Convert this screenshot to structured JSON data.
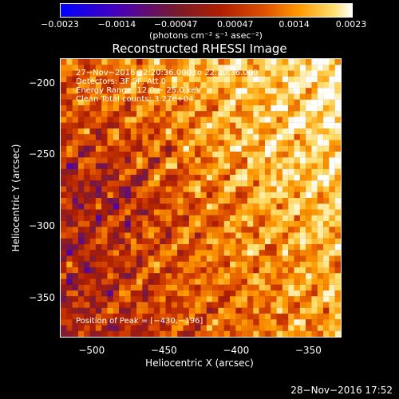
{
  "colorbar": {
    "ticks": [
      "−0.0023",
      "−0.0014",
      "−0.00047",
      "0.00047",
      "0.0014",
      "0.0023"
    ],
    "unit": "(photons cm⁻² s⁻¹ asec⁻²)"
  },
  "title": "Reconstructed RHESSI Image",
  "info": {
    "line1": "27−Nov−2016 22:20:36.000 to 22:30:36.000",
    "line2": "Detectors: 3F 9F, Att 0",
    "line3": "Energy Range: 12.0 − 25.0 keV",
    "line4": "Clean     Total counts: 3.27e+04"
  },
  "peak": "Position of Peak = [−430,−196]",
  "timestamp": "28−Nov−2016 17:52",
  "chart_data": {
    "type": "heatmap",
    "title": "Reconstructed RHESSI Image",
    "xlabel": "Heliocentric X (arcsec)",
    "ylabel": "Heliocentric Y (arcsec)",
    "xlim": [
      -522,
      -327
    ],
    "ylim": [
      -378,
      -183
    ],
    "x_ticks": [
      -500,
      -450,
      -400,
      -350
    ],
    "x_tick_labels": [
      "−500",
      "−450",
      "−400",
      "−350"
    ],
    "y_ticks": [
      -200,
      -250,
      -300,
      -350
    ],
    "y_tick_labels": [
      "−200",
      "−250",
      "−300",
      "−350"
    ],
    "zlim": [
      -0.0023,
      0.0023
    ],
    "colorbar_ticks": [
      -0.0023,
      -0.0014,
      -0.00047,
      0.00047,
      0.0014,
      0.0023
    ],
    "peak_position": [
      -430,
      -196
    ]
  }
}
